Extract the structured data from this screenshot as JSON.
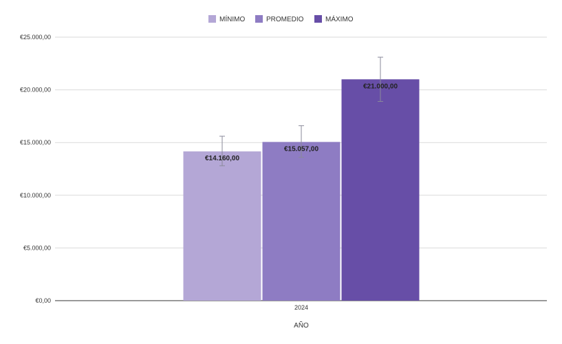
{
  "chart_data": {
    "type": "bar",
    "categories": [
      "2024"
    ],
    "xlabel": "AÑO",
    "ylabel": "",
    "ylim": [
      0,
      25000
    ],
    "yticks": [
      "€0,00",
      "€5.000,00",
      "€10.000,00",
      "€15.000,00",
      "€20.000,00",
      "€25.000,00"
    ],
    "ytick_values": [
      0,
      5000,
      10000,
      15000,
      20000,
      25000
    ],
    "grid": true,
    "legend_position": "top-center",
    "series": [
      {
        "name": "MÍNIMO",
        "values": [
          14160
        ],
        "label": "€14.160,00",
        "error_low": [
          12800
        ],
        "error_high": [
          15600
        ],
        "color": "#b4a7d6"
      },
      {
        "name": "PROMEDIO",
        "values": [
          15057
        ],
        "label": "€15.057,00",
        "error_low": [
          13600
        ],
        "error_high": [
          16600
        ],
        "color": "#8e7cc3"
      },
      {
        "name": "MÁXIMO",
        "values": [
          21000
        ],
        "label": "€21.000,00",
        "error_low": [
          18900
        ],
        "error_high": [
          23100
        ],
        "color": "#674ea7"
      }
    ]
  }
}
